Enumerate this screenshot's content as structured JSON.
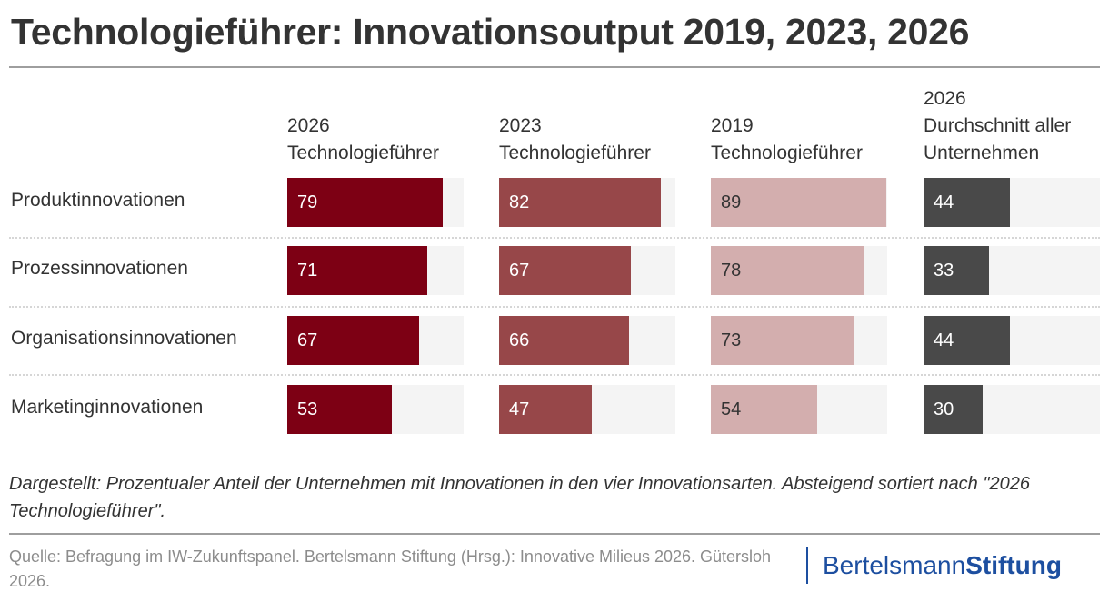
{
  "header": {
    "title": "Technologieführer: Innovationsoutput 2019, 2023, 2026"
  },
  "chart_data": {
    "type": "bar",
    "orientation": "horizontal",
    "layout": "small-multiples (one column per series)",
    "title": "Technologieführer: Innovationsoutput 2019, 2023, 2026",
    "unit": "%",
    "categories": [
      "Produktinnovationen",
      "Prozessinnovationen",
      "Organisationsinnovationen",
      "Marketinginnovationen"
    ],
    "series": [
      {
        "name": "2026 Technologieführer",
        "header_lines": [
          "2026",
          "Technologieführer"
        ],
        "color": "#7d0014",
        "text_color": "#ffffff",
        "values": [
          79,
          71,
          67,
          53
        ]
      },
      {
        "name": "2023 Technologieführer",
        "header_lines": [
          "2023",
          "Technologieführer"
        ],
        "color": "#974749",
        "text_color": "#ffffff",
        "values": [
          82,
          67,
          66,
          47
        ]
      },
      {
        "name": "2019 Technologieführer",
        "header_lines": [
          "2019",
          "Technologieführer"
        ],
        "color": "#d3aeae",
        "text_color": "#333333",
        "values": [
          89,
          78,
          73,
          54
        ]
      },
      {
        "name": "2026 Durchschnitt aller Unternehmen",
        "header_lines": [
          "2026",
          "Durchschnitt aller",
          "Unternehmen"
        ],
        "color": "#494949",
        "text_color": "#ffffff",
        "values": [
          44,
          33,
          44,
          30
        ]
      }
    ],
    "track_color": "#f4f4f4",
    "grid": false,
    "legend": "none (column headers)"
  },
  "note": "Dargestellt: Prozentualer Anteil der Unternehmen mit Innovationen in den vier Innovationsarten. Absteigend sortiert nach \"2026 Technologieführer\".",
  "source": "Quelle: Befragung im IW-Zukunftspanel. Bertelsmann Stiftung (Hrsg.): Innovative Milieus 2026. Gütersloh 2026.",
  "logo": {
    "part1": "Bertelsmann",
    "part2": "Stiftung"
  }
}
